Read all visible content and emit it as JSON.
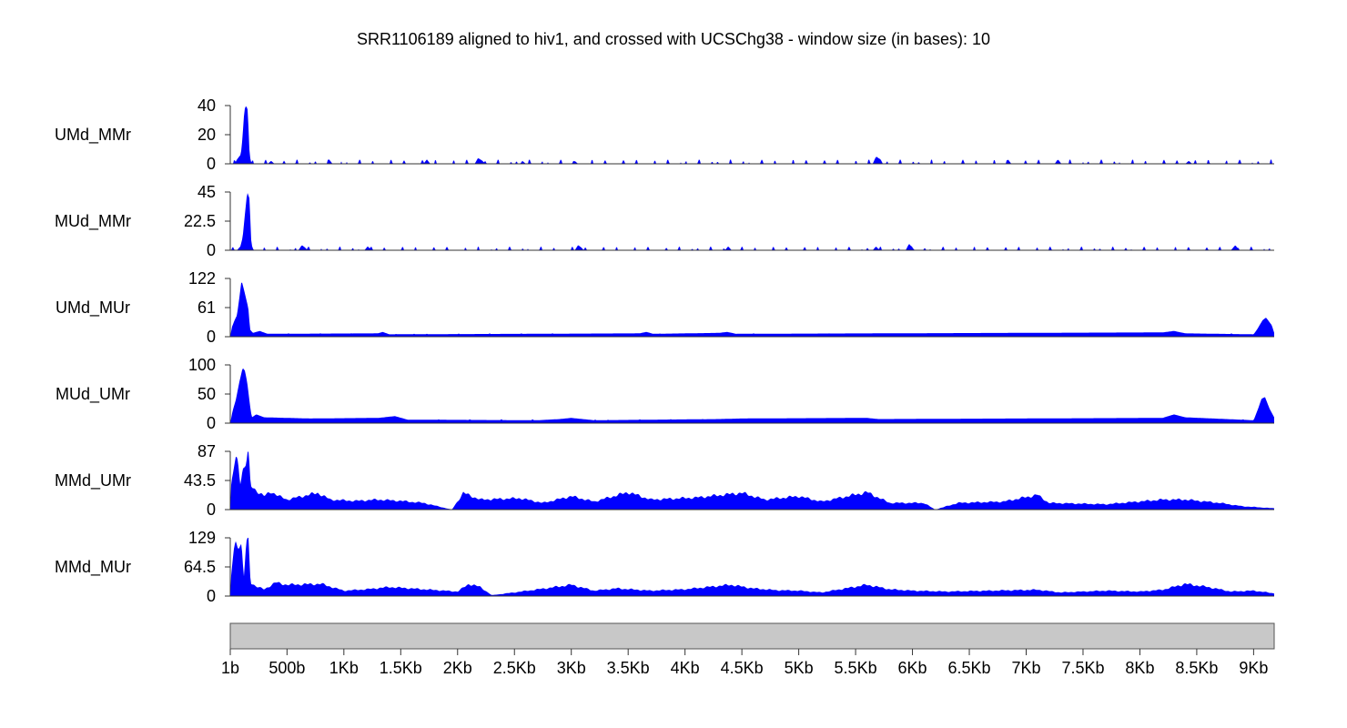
{
  "chart_data": {
    "type": "area",
    "title": "SRR1106189 aligned to hiv1, and crossed with UCSChg38 - window size (in bases):  10",
    "fill_color": "#0000ff",
    "axis_color": "#333333",
    "genome_bar_color": "#c8c8c8",
    "x_range": [
      1,
      9181
    ],
    "x_tick_values": [
      1,
      500,
      1000,
      1500,
      2000,
      2500,
      3000,
      3500,
      4000,
      4500,
      5000,
      5500,
      6000,
      6500,
      7000,
      7500,
      8000,
      8500,
      9000
    ],
    "x_tick_labels": [
      "1b",
      "500b",
      "1Kb",
      "1.5Kb",
      "2Kb",
      "2.5Kb",
      "3Kb",
      "3.5Kb",
      "4Kb",
      "4.5Kb",
      "5Kb",
      "5.5Kb",
      "6Kb",
      "6.5Kb",
      "7Kb",
      "7.5Kb",
      "8Kb",
      "8.5Kb",
      "9Kb"
    ],
    "tracks": [
      {
        "name": "UMd_MMr",
        "ylim": [
          0,
          40
        ],
        "y_tick_labels": [
          "40",
          "20",
          "0"
        ],
        "profile": [
          [
            1,
            0
          ],
          [
            40,
            0
          ],
          [
            60,
            3
          ],
          [
            90,
            6
          ],
          [
            100,
            10
          ],
          [
            110,
            20
          ],
          [
            125,
            37
          ],
          [
            140,
            40
          ],
          [
            155,
            37
          ],
          [
            170,
            8
          ],
          [
            180,
            2
          ],
          [
            190,
            0
          ],
          [
            330,
            0
          ],
          [
            360,
            2
          ],
          [
            390,
            0
          ],
          [
            850,
            0
          ],
          [
            870,
            3
          ],
          [
            900,
            0
          ],
          [
            1700,
            0
          ],
          [
            1730,
            3
          ],
          [
            1760,
            0
          ],
          [
            2150,
            0
          ],
          [
            2180,
            4
          ],
          [
            2220,
            2
          ],
          [
            2240,
            0
          ],
          [
            2550,
            0
          ],
          [
            2570,
            2
          ],
          [
            2600,
            0
          ],
          [
            3000,
            0
          ],
          [
            3030,
            2
          ],
          [
            3060,
            0
          ],
          [
            5650,
            0
          ],
          [
            5680,
            5
          ],
          [
            5720,
            3
          ],
          [
            5740,
            0
          ],
          [
            6820,
            0
          ],
          [
            6840,
            3
          ],
          [
            6870,
            0
          ],
          [
            7250,
            0
          ],
          [
            7280,
            3
          ],
          [
            7310,
            0
          ],
          [
            8400,
            0
          ],
          [
            8430,
            2
          ],
          [
            8460,
            0
          ],
          [
            9181,
            0
          ]
        ],
        "baseline_bumps": 0.13
      },
      {
        "name": "MUd_MMr",
        "ylim": [
          0,
          45
        ],
        "y_tick_labels": [
          "45",
          "22.5",
          "0"
        ],
        "profile": [
          [
            1,
            0
          ],
          [
            60,
            0
          ],
          [
            90,
            3
          ],
          [
            110,
            10
          ],
          [
            130,
            28
          ],
          [
            150,
            45
          ],
          [
            170,
            40
          ],
          [
            185,
            8
          ],
          [
            195,
            2
          ],
          [
            210,
            0
          ],
          [
            600,
            0
          ],
          [
            630,
            4
          ],
          [
            660,
            2
          ],
          [
            680,
            0
          ],
          [
            1180,
            0
          ],
          [
            1210,
            3
          ],
          [
            1240,
            0
          ],
          [
            3030,
            0
          ],
          [
            3060,
            4
          ],
          [
            3090,
            2
          ],
          [
            3110,
            0
          ],
          [
            4350,
            0
          ],
          [
            4380,
            3
          ],
          [
            4410,
            0
          ],
          [
            5650,
            0
          ],
          [
            5680,
            3
          ],
          [
            5710,
            0
          ],
          [
            5940,
            0
          ],
          [
            5970,
            5
          ],
          [
            6000,
            2
          ],
          [
            6020,
            0
          ],
          [
            8800,
            0
          ],
          [
            8840,
            4
          ],
          [
            8870,
            0
          ],
          [
            9181,
            0
          ]
        ],
        "baseline_bumps": 0.11
      },
      {
        "name": "UMd_MUr",
        "ylim": [
          0,
          122
        ],
        "y_tick_labels": [
          "122",
          "61",
          "0"
        ],
        "profile": [
          [
            1,
            0
          ],
          [
            15,
            20
          ],
          [
            40,
            35
          ],
          [
            60,
            45
          ],
          [
            80,
            80
          ],
          [
            100,
            118
          ],
          [
            120,
            100
          ],
          [
            140,
            80
          ],
          [
            160,
            60
          ],
          [
            175,
            15
          ],
          [
            200,
            8
          ],
          [
            260,
            12
          ],
          [
            330,
            6
          ],
          [
            1300,
            7
          ],
          [
            1340,
            10
          ],
          [
            1400,
            5
          ],
          [
            2600,
            6
          ],
          [
            3600,
            7
          ],
          [
            3660,
            10
          ],
          [
            3720,
            6
          ],
          [
            4300,
            8
          ],
          [
            4370,
            10
          ],
          [
            4450,
            6
          ],
          [
            8200,
            9
          ],
          [
            8300,
            12
          ],
          [
            8400,
            7
          ],
          [
            9000,
            5
          ],
          [
            9030,
            15
          ],
          [
            9080,
            35
          ],
          [
            9110,
            40
          ],
          [
            9160,
            24
          ],
          [
            9181,
            8
          ]
        ],
        "baseline_bumps": 0.1
      },
      {
        "name": "MUd_UMr",
        "ylim": [
          0,
          100
        ],
        "y_tick_labels": [
          "100",
          "50",
          "0"
        ],
        "profile": [
          [
            1,
            0
          ],
          [
            20,
            20
          ],
          [
            50,
            40
          ],
          [
            80,
            70
          ],
          [
            110,
            95
          ],
          [
            130,
            90
          ],
          [
            150,
            70
          ],
          [
            175,
            30
          ],
          [
            190,
            10
          ],
          [
            230,
            15
          ],
          [
            300,
            10
          ],
          [
            700,
            8
          ],
          [
            1300,
            9
          ],
          [
            1450,
            12
          ],
          [
            1560,
            6
          ],
          [
            2700,
            5
          ],
          [
            2900,
            7
          ],
          [
            3000,
            9
          ],
          [
            3200,
            5
          ],
          [
            4300,
            7
          ],
          [
            4500,
            8
          ],
          [
            5600,
            9
          ],
          [
            5700,
            7
          ],
          [
            8200,
            9
          ],
          [
            8300,
            15
          ],
          [
            8400,
            10
          ],
          [
            9000,
            5
          ],
          [
            9040,
            25
          ],
          [
            9070,
            42
          ],
          [
            9100,
            45
          ],
          [
            9140,
            25
          ],
          [
            9181,
            10
          ]
        ],
        "baseline_bumps": 0.12
      },
      {
        "name": "MMd_UMr",
        "ylim": [
          0,
          87
        ],
        "y_tick_labels": [
          "87",
          "43.5",
          "0"
        ],
        "profile": [
          [
            1,
            0
          ],
          [
            10,
            40
          ],
          [
            30,
            60
          ],
          [
            50,
            72
          ],
          [
            70,
            72
          ],
          [
            90,
            40
          ],
          [
            110,
            60
          ],
          [
            140,
            72
          ],
          [
            160,
            87
          ],
          [
            180,
            35
          ],
          [
            220,
            30
          ],
          [
            300,
            20
          ],
          [
            360,
            27
          ],
          [
            430,
            20
          ],
          [
            500,
            15
          ],
          [
            770,
            25
          ],
          [
            880,
            15
          ],
          [
            1100,
            13
          ],
          [
            1300,
            15
          ],
          [
            1500,
            13
          ],
          [
            1700,
            10
          ],
          [
            1950,
            0
          ],
          [
            2050,
            25
          ],
          [
            2200,
            15
          ],
          [
            2550,
            17
          ],
          [
            2750,
            10
          ],
          [
            3000,
            20
          ],
          [
            3200,
            12
          ],
          [
            3500,
            26
          ],
          [
            3700,
            15
          ],
          [
            4100,
            18
          ],
          [
            4500,
            25
          ],
          [
            4700,
            15
          ],
          [
            5000,
            20
          ],
          [
            5200,
            12
          ],
          [
            5600,
            26
          ],
          [
            5800,
            10
          ],
          [
            6100,
            10
          ],
          [
            6200,
            0
          ],
          [
            6400,
            10
          ],
          [
            6800,
            12
          ],
          [
            7100,
            22
          ],
          [
            7200,
            10
          ],
          [
            7700,
            8
          ],
          [
            8200,
            15
          ],
          [
            8400,
            15
          ],
          [
            8700,
            10
          ],
          [
            8900,
            5
          ],
          [
            9181,
            2
          ]
        ],
        "baseline_bumps": 0
      },
      {
        "name": "MMd_MUr",
        "ylim": [
          0,
          129
        ],
        "y_tick_labels": [
          "129",
          "64.5",
          "0"
        ],
        "profile": [
          [
            1,
            0
          ],
          [
            10,
            50
          ],
          [
            30,
            100
          ],
          [
            50,
            120
          ],
          [
            80,
            118
          ],
          [
            100,
            110
          ],
          [
            120,
            40
          ],
          [
            140,
            110
          ],
          [
            160,
            129
          ],
          [
            180,
            30
          ],
          [
            240,
            20
          ],
          [
            300,
            15
          ],
          [
            400,
            30
          ],
          [
            500,
            25
          ],
          [
            800,
            27
          ],
          [
            1000,
            12
          ],
          [
            1200,
            15
          ],
          [
            1400,
            20
          ],
          [
            1700,
            15
          ],
          [
            2000,
            10
          ],
          [
            2100,
            27
          ],
          [
            2200,
            20
          ],
          [
            2300,
            2
          ],
          [
            2500,
            8
          ],
          [
            2800,
            18
          ],
          [
            3000,
            25
          ],
          [
            3200,
            12
          ],
          [
            3400,
            17
          ],
          [
            3700,
            12
          ],
          [
            4000,
            15
          ],
          [
            4400,
            25
          ],
          [
            4600,
            17
          ],
          [
            4800,
            13
          ],
          [
            5000,
            12
          ],
          [
            5200,
            8
          ],
          [
            5600,
            25
          ],
          [
            5800,
            15
          ],
          [
            6000,
            12
          ],
          [
            6300,
            10
          ],
          [
            6700,
            12
          ],
          [
            7100,
            14
          ],
          [
            7300,
            8
          ],
          [
            7700,
            12
          ],
          [
            8000,
            10
          ],
          [
            8200,
            14
          ],
          [
            8400,
            27
          ],
          [
            8600,
            20
          ],
          [
            8800,
            10
          ],
          [
            9000,
            12
          ],
          [
            9181,
            6
          ]
        ],
        "baseline_bumps": 0
      }
    ]
  }
}
